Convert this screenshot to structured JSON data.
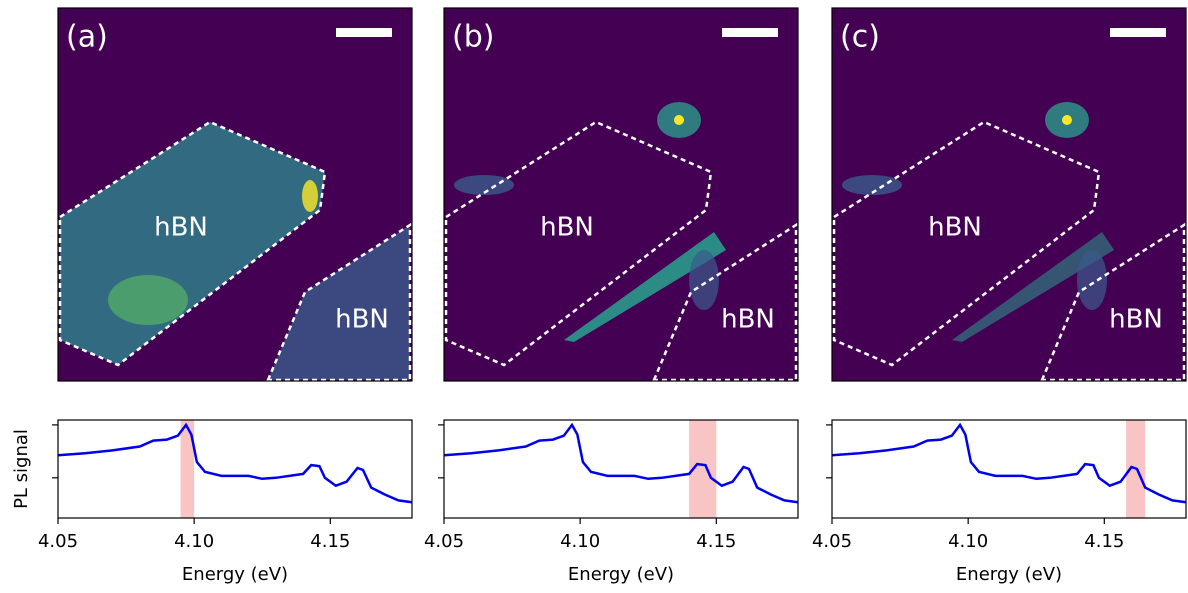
{
  "chart_data": [
    {
      "type": "line",
      "panel_label": "(a)",
      "region_labels": [
        "hBN",
        "hBN"
      ],
      "ylabel": "PL signal",
      "xlabel": "Energy (eV)",
      "xlim": [
        4.05,
        4.18
      ],
      "xticks": [
        4.05,
        {
          "value": 4.1,
          "label": "4.10"
        },
        4.15
      ],
      "ylim": [
        0,
        1
      ],
      "yticks": [
        0.41,
        0.95
      ],
      "highlight": [
        4.095,
        4.1
      ],
      "highlight_color": "#f8c4c4",
      "x": [
        4.05,
        4.06,
        4.07,
        4.08,
        4.085,
        4.09,
        4.094,
        4.097,
        4.099,
        4.101,
        4.104,
        4.11,
        4.12,
        4.125,
        4.13,
        4.14,
        4.143,
        4.146,
        4.148,
        4.152,
        4.156,
        4.16,
        4.162,
        4.165,
        4.17,
        4.175,
        4.18
      ],
      "series": [
        {
          "color": "#0000ee",
          "values": [
            0.64,
            0.66,
            0.69,
            0.73,
            0.79,
            0.8,
            0.84,
            0.95,
            0.85,
            0.57,
            0.47,
            0.43,
            0.43,
            0.4,
            0.41,
            0.45,
            0.54,
            0.53,
            0.41,
            0.33,
            0.37,
            0.51,
            0.49,
            0.31,
            0.24,
            0.18,
            0.16
          ]
        }
      ]
    },
    {
      "type": "line",
      "panel_label": "(b)",
      "region_labels": [
        "hBN",
        "hBN"
      ],
      "xlabel": "Energy (eV)",
      "xlim": [
        4.05,
        4.18
      ],
      "xticks": [
        4.05,
        {
          "value": 4.1,
          "label": "4.10"
        },
        4.15
      ],
      "ylim": [
        0,
        1
      ],
      "yticks": [
        0.41,
        0.95
      ],
      "highlight": [
        4.14,
        4.15
      ],
      "highlight_color": "#f8c4c4",
      "x": [
        4.05,
        4.06,
        4.07,
        4.08,
        4.085,
        4.09,
        4.094,
        4.097,
        4.099,
        4.101,
        4.104,
        4.11,
        4.12,
        4.125,
        4.13,
        4.14,
        4.143,
        4.146,
        4.148,
        4.152,
        4.156,
        4.16,
        4.162,
        4.165,
        4.17,
        4.175,
        4.18
      ],
      "series": [
        {
          "color": "#0000ee",
          "values": [
            0.64,
            0.66,
            0.69,
            0.73,
            0.79,
            0.8,
            0.84,
            0.95,
            0.85,
            0.57,
            0.47,
            0.43,
            0.43,
            0.4,
            0.41,
            0.45,
            0.55,
            0.54,
            0.41,
            0.33,
            0.37,
            0.52,
            0.5,
            0.31,
            0.24,
            0.18,
            0.16
          ]
        }
      ]
    },
    {
      "type": "line",
      "panel_label": "(c)",
      "region_labels": [
        "hBN",
        "hBN"
      ],
      "xlabel": "Energy (eV)",
      "xlim": [
        4.05,
        4.18
      ],
      "xticks": [
        4.05,
        {
          "value": 4.1,
          "label": "4.10"
        },
        4.15
      ],
      "ylim": [
        0,
        1
      ],
      "yticks": [
        0.41,
        0.95
      ],
      "highlight": [
        4.158,
        4.165
      ],
      "highlight_color": "#f8c4c4",
      "x": [
        4.05,
        4.06,
        4.07,
        4.08,
        4.085,
        4.09,
        4.094,
        4.097,
        4.099,
        4.101,
        4.104,
        4.11,
        4.12,
        4.125,
        4.13,
        4.14,
        4.143,
        4.146,
        4.148,
        4.152,
        4.156,
        4.16,
        4.162,
        4.165,
        4.17,
        4.175,
        4.18
      ],
      "series": [
        {
          "color": "#0000ee",
          "values": [
            0.64,
            0.66,
            0.69,
            0.73,
            0.79,
            0.8,
            0.84,
            0.95,
            0.85,
            0.57,
            0.47,
            0.43,
            0.43,
            0.4,
            0.41,
            0.45,
            0.55,
            0.54,
            0.41,
            0.33,
            0.37,
            0.52,
            0.5,
            0.31,
            0.24,
            0.18,
            0.16
          ]
        }
      ]
    }
  ]
}
